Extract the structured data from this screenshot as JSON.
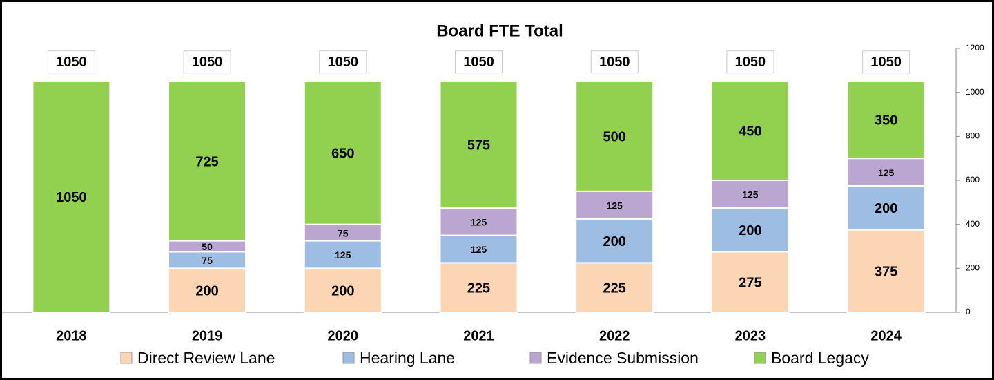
{
  "chart_data": {
    "type": "stacked_bar",
    "title": "Board FTE Total",
    "categories": [
      "2018",
      "2019",
      "2020",
      "2021",
      "2022",
      "2023",
      "2024"
    ],
    "series": [
      {
        "name": "Direct Review Lane",
        "color": "#fcd5b5",
        "values": [
          null,
          200,
          200,
          225,
          225,
          275,
          375
        ]
      },
      {
        "name": "Hearing Lane",
        "color": "#9dbde3",
        "values": [
          null,
          75,
          125,
          125,
          200,
          200,
          200
        ]
      },
      {
        "name": "Evidence Submission",
        "color": "#bba6d2",
        "values": [
          null,
          50,
          75,
          125,
          125,
          125,
          125
        ]
      },
      {
        "name": "Board Legacy",
        "color": "#92d050",
        "values": [
          1050,
          725,
          650,
          575,
          500,
          450,
          350
        ]
      }
    ],
    "totals": [
      1050,
      1050,
      1050,
      1050,
      1050,
      1050,
      1050
    ],
    "ylim": [
      0,
      1200
    ],
    "yticks": [
      0,
      200,
      400,
      600,
      800,
      1000,
      1200
    ],
    "legend": "bottom"
  }
}
